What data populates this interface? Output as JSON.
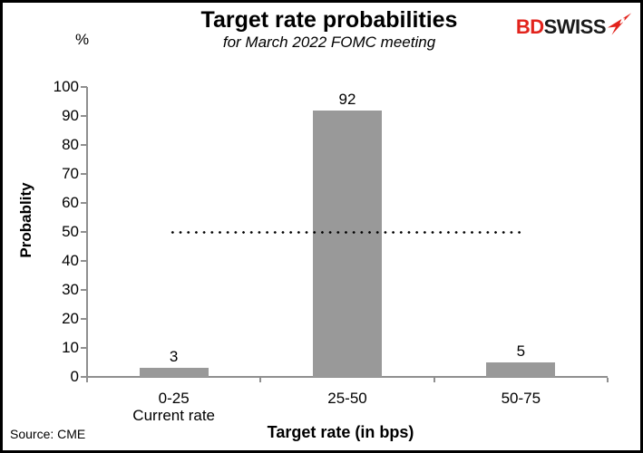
{
  "header": {
    "title": "Target rate probabilities",
    "subtitle": "for March 2022 FOMC meeting",
    "logo": {
      "part1": "BD",
      "part2": "SWISS",
      "part1_color": "#e2231c",
      "part2_color": "#1a1a1a",
      "arrow_color": "#e2231c"
    }
  },
  "chart_data": {
    "type": "bar",
    "title": "Target rate probabilities",
    "subtitle": "for March 2022 FOMC meeting",
    "categories": [
      "0-25",
      "25-50",
      "50-75"
    ],
    "category_sublabels": [
      "Current rate",
      "",
      ""
    ],
    "values": [
      3,
      92,
      5
    ],
    "data_labels": [
      "3",
      "92",
      "5"
    ],
    "xlabel": "Target rate (in bps)",
    "ylabel": "Probablity",
    "y_unit": "%",
    "ylim": [
      0,
      100
    ],
    "yticks": [
      0,
      10,
      20,
      30,
      40,
      50,
      60,
      70,
      80,
      90,
      100
    ],
    "reference_line": {
      "value": 50,
      "style": "dotted",
      "color": "#000000"
    },
    "bar_color": "#999999",
    "axis_color": "#8f8f8f",
    "grid": false,
    "legend": false
  },
  "footer": {
    "source": "Source: CME"
  }
}
